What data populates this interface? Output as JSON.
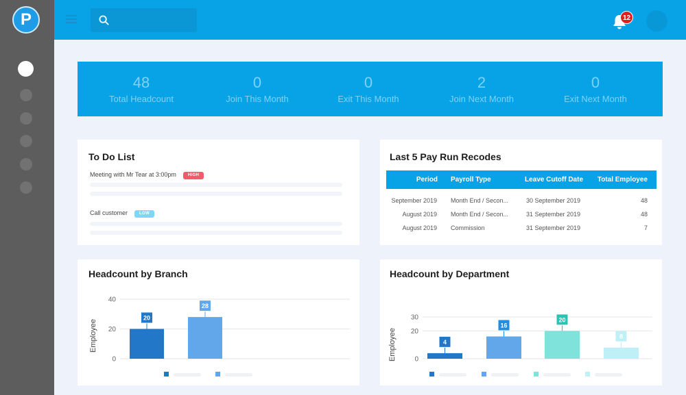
{
  "header": {
    "search_placeholder": "",
    "notification_count": "12"
  },
  "logo": {
    "letter": "P"
  },
  "stats": [
    {
      "value": "48",
      "label": "Total Headcount"
    },
    {
      "value": "0",
      "label": "Join This Month"
    },
    {
      "value": "0",
      "label": "Exit This Month"
    },
    {
      "value": "2",
      "label": "Join Next Month"
    },
    {
      "value": "0",
      "label": "Exit Next Month"
    }
  ],
  "todo": {
    "title": "To Do List",
    "items": [
      {
        "text": "Meeting with Mr Tear at 3:00pm",
        "priority": "HIGH"
      },
      {
        "text": "Call customer",
        "priority": "LOW"
      }
    ]
  },
  "payrun": {
    "title": "Last 5 Pay Run Recodes",
    "columns": [
      "Period",
      "Payroll Type",
      "Leave Cutoff Date",
      "Total Employee"
    ],
    "rows": [
      [
        "September 2019",
        "Month End / Secon...",
        "30 September 2019",
        "48"
      ],
      [
        "August 2019",
        "Month End / Secon...",
        "31 September 2019",
        "48"
      ],
      [
        "August 2019",
        "Commission",
        "31 September 2019",
        "7"
      ]
    ]
  },
  "chart_data": [
    {
      "type": "bar",
      "title": "Headcount by Branch",
      "ylabel": "Employee",
      "ylim": [
        0,
        40
      ],
      "yticks": [
        "0",
        "20",
        "40"
      ],
      "categories": [
        "",
        ""
      ],
      "values": [
        20,
        28
      ],
      "colors": [
        "#2277c9",
        "#62a7ea"
      ]
    },
    {
      "type": "bar",
      "title": "Headcount by Department",
      "ylabel": "Employee",
      "ylim": [
        0,
        30
      ],
      "yticks": [
        "0",
        "20",
        "30"
      ],
      "categories": [
        "",
        "",
        "",
        ""
      ],
      "values": [
        4,
        16,
        20,
        8
      ],
      "colors": [
        "#2277c9",
        "#62a7ea",
        "#7fe3dc",
        "#bff0f7"
      ],
      "label_colors": [
        "#2277c9",
        "#1f8fe3",
        "#2cc3b5",
        "#bff0f7"
      ]
    }
  ]
}
